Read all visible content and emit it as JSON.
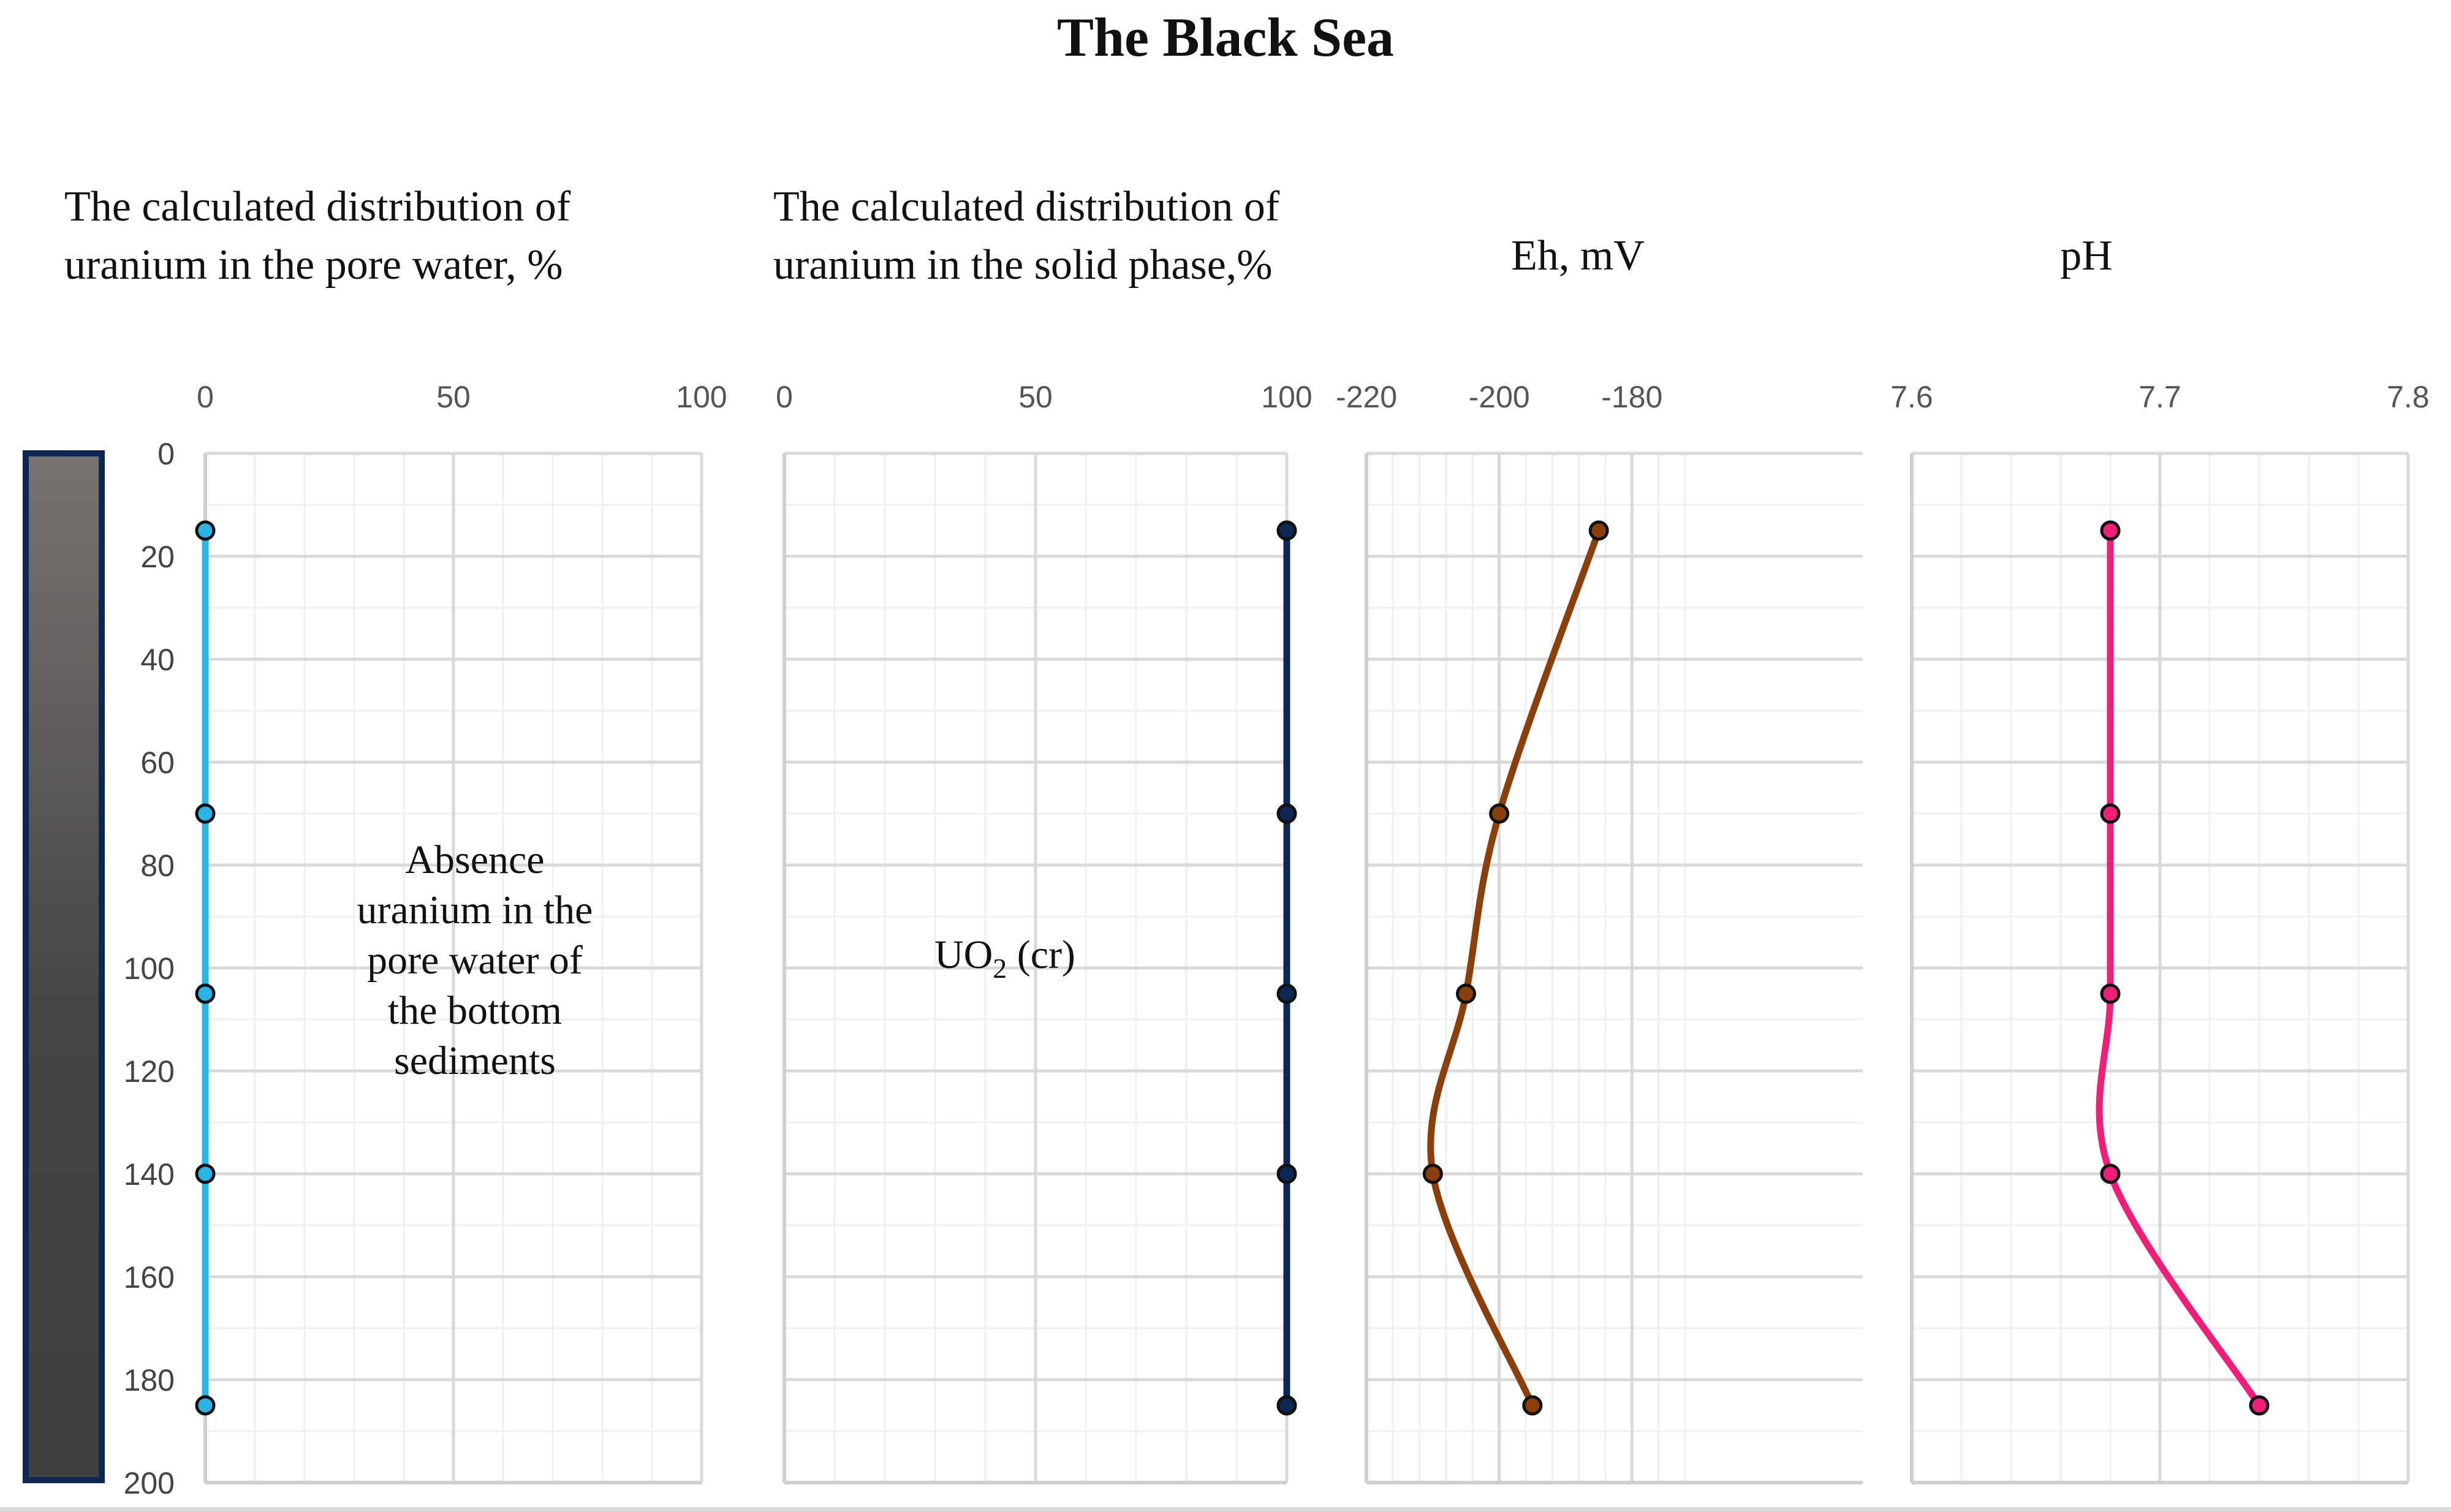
{
  "title": "The Black Sea",
  "chart_data": {
    "type": "line",
    "shared_y": {
      "label": "",
      "range": [
        0,
        200
      ],
      "ticks": [
        "0",
        "20",
        "40",
        "60",
        "80",
        "100",
        "120",
        "140",
        "160",
        "180",
        "200"
      ],
      "inverted": true
    },
    "panels": [
      {
        "id": "pore",
        "title_lines": [
          "The calculated distribution of",
          "uranium in the pore water, %"
        ],
        "xlim": [
          0,
          100
        ],
        "xticks": [
          0,
          50,
          100
        ],
        "xtick_labels": [
          "0",
          "50",
          "100"
        ],
        "series": [
          {
            "color": "#29b6e6",
            "depth": [
              15,
              70,
              105,
              140,
              185
            ],
            "values": [
              0,
              0,
              0,
              0,
              0
            ]
          }
        ],
        "annotation_lines": [
          "Absence",
          "uranium in the",
          "pore water of",
          "the bottom",
          "sediments"
        ]
      },
      {
        "id": "solid",
        "title_lines": [
          "The calculated distribution of",
          "uranium in the solid  phase,%"
        ],
        "xlim": [
          0,
          100
        ],
        "xticks": [
          0,
          50,
          100
        ],
        "xtick_labels": [
          "0",
          "50",
          "100"
        ],
        "series": [
          {
            "color": "#0d2653",
            "depth": [
              15,
              70,
              105,
              140,
              185
            ],
            "values": [
              100,
              100,
              100,
              100,
              100
            ]
          }
        ],
        "annotation": {
          "main": "UO",
          "sub": "2",
          "tail": " (cr)"
        }
      },
      {
        "id": "eh",
        "title_lines": [
          "Eh, mV"
        ],
        "xlim": [
          -220,
          -170
        ],
        "xticks": [
          -220,
          -200,
          -180
        ],
        "xtick_labels": [
          "-220",
          "-200",
          "-180"
        ],
        "series": [
          {
            "color": "#8b3f0a",
            "depth": [
              15,
              70,
              105,
              140,
              185
            ],
            "values": [
              -185,
              -200,
              -205,
              -210,
              -195
            ]
          }
        ]
      },
      {
        "id": "ph",
        "title_lines": [
          "pH"
        ],
        "xlim": [
          7.6,
          7.8
        ],
        "xticks": [
          7.6,
          7.7,
          7.8
        ],
        "xtick_labels": [
          "7.6",
          "7.7",
          "7.8"
        ],
        "series": [
          {
            "color": "#f01e78",
            "depth": [
              15,
              70,
              105,
              140,
              185
            ],
            "values": [
              7.68,
              7.68,
              7.68,
              7.68,
              7.74
            ]
          }
        ]
      }
    ],
    "core_column": {
      "top_color": "#777373",
      "bottom_color": "#404040",
      "border_color": "#0d2653"
    }
  }
}
